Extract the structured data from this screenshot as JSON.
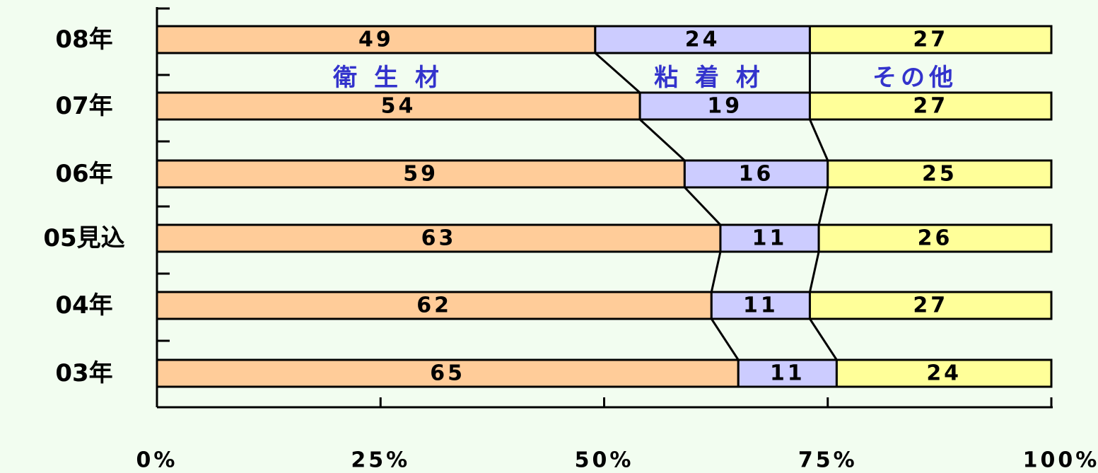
{
  "chart_data": {
    "type": "bar",
    "orientation": "horizontal",
    "stacked": "percent",
    "categories": [
      "08年",
      "07年",
      "06年",
      "05見込",
      "04年",
      "03年"
    ],
    "series": [
      {
        "name": "衛 生 材",
        "values": [
          49,
          54,
          59,
          63,
          62,
          65
        ],
        "color": "#ffcc99"
      },
      {
        "name": "粘 着 材",
        "values": [
          24,
          19,
          16,
          11,
          11,
          11
        ],
        "color": "#ccccff"
      },
      {
        "name": "その他",
        "values": [
          27,
          27,
          25,
          26,
          27,
          24
        ],
        "color": "#ffff99"
      }
    ],
    "x_ticks": [
      "0%",
      "25%",
      "50%",
      "75%",
      "100%"
    ],
    "xlim": [
      0,
      100
    ],
    "grid": false,
    "legend": "series names labeled inside chart between first two bars",
    "series_connector_lines": true
  }
}
